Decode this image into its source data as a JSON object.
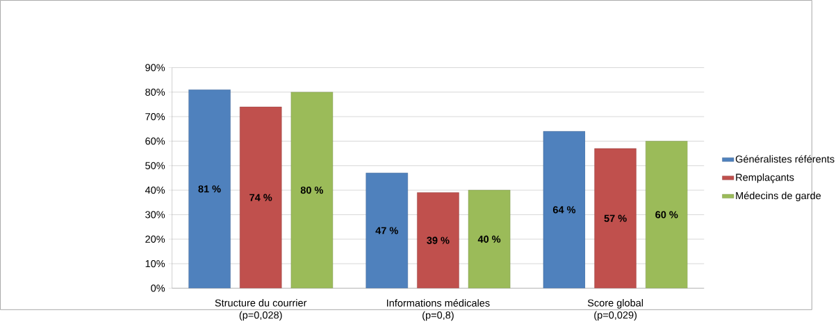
{
  "chart_data": {
    "type": "bar",
    "categories": [
      "Structure du courrier\n(p=0,028)",
      "Informations médicales\n(p=0,8)",
      "Score global\n(p=0,029)"
    ],
    "series": [
      {
        "name": "Généralistes référents",
        "color": "#4f81bd",
        "values": [
          81,
          47,
          64
        ],
        "value_labels": [
          "81 %",
          "47 %",
          "64 %"
        ]
      },
      {
        "name": "Remplaçants",
        "color": "#c0504d",
        "values": [
          74,
          39,
          57
        ],
        "value_labels": [
          "74 %",
          "39 %",
          "57 %"
        ]
      },
      {
        "name": "Médecins de garde",
        "color": "#9bbb59",
        "values": [
          80,
          40,
          60
        ],
        "value_labels": [
          "80 %",
          "40 %",
          "60 %"
        ]
      }
    ],
    "ylim": [
      0,
      90
    ],
    "yticks": [
      {
        "value": 0,
        "label": "0%"
      },
      {
        "value": 10,
        "label": "10%"
      },
      {
        "value": 20,
        "label": "20%"
      },
      {
        "value": 30,
        "label": "30%"
      },
      {
        "value": 40,
        "label": "40%"
      },
      {
        "value": 50,
        "label": "50%"
      },
      {
        "value": 60,
        "label": "60%"
      },
      {
        "value": 70,
        "label": "70%"
      },
      {
        "value": 80,
        "label": "80%"
      },
      {
        "value": 90,
        "label": "90%"
      }
    ],
    "grid": "y",
    "legend": "right"
  }
}
